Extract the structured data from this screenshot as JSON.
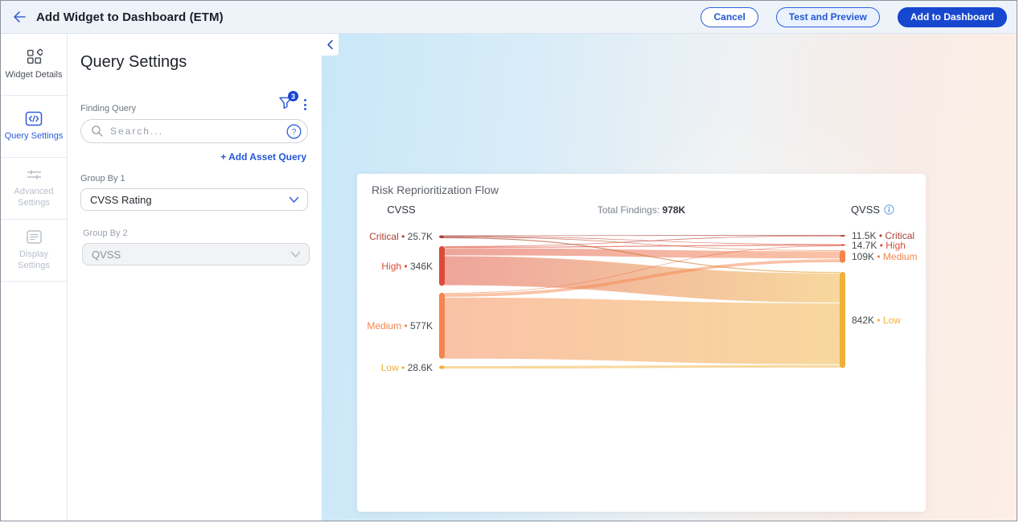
{
  "header": {
    "title": "Add Widget to Dashboard (ETM)",
    "buttons": {
      "cancel": "Cancel",
      "test_preview": "Test and Preview",
      "add": "Add to Dashboard"
    }
  },
  "colors": {
    "accent_blue": "#2457d6",
    "primary_button_bg": "#1747cf"
  },
  "sidebar": {
    "items": [
      {
        "label": "Widget Details",
        "icon": "widget-grid-icon",
        "state": "default"
      },
      {
        "label": "Query Settings",
        "icon": "code-icon",
        "state": "active"
      },
      {
        "label": "Advanced Settings",
        "icon": "sliders-icon",
        "state": "disabled"
      },
      {
        "label": "Display Settings",
        "icon": "display-list-icon",
        "state": "disabled"
      }
    ]
  },
  "query_settings": {
    "title": "Query Settings",
    "finding_query_label": "Finding Query",
    "filter_badge_count": "3",
    "search_placeholder": "Search...",
    "add_asset_query_label": "+ Add Asset Query",
    "group_by_1": {
      "label": "Group By 1",
      "value": "CVSS Rating",
      "disabled": false
    },
    "group_by_2": {
      "label": "Group By 2",
      "value": "QVSS",
      "disabled": true
    }
  },
  "chart_data": {
    "type": "sankey",
    "title": "Risk Reprioritization Flow",
    "left_column_label": "CVSS",
    "right_column_label": "QVSS",
    "total_findings_label": "Total Findings:",
    "total_findings_value": "978K",
    "severity_colors": {
      "Critical": "#ab4238",
      "High": "#dd4b37",
      "Medium": "#f5854e",
      "Low": "#f0b03c"
    },
    "left_nodes": [
      {
        "name": "Critical",
        "value": 25.7,
        "value_label": "25.7K"
      },
      {
        "name": "High",
        "value": 346,
        "value_label": "346K"
      },
      {
        "name": "Medium",
        "value": 577,
        "value_label": "577K"
      },
      {
        "name": "Low",
        "value": 28.6,
        "value_label": "28.6K"
      }
    ],
    "right_nodes": [
      {
        "name": "Critical",
        "value": 11.5,
        "value_label": "11.5K"
      },
      {
        "name": "High",
        "value": 14.7,
        "value_label": "14.7K"
      },
      {
        "name": "Medium",
        "value": 109,
        "value_label": "109K"
      },
      {
        "name": "Low",
        "value": 842,
        "value_label": "842K"
      }
    ],
    "links": [
      {
        "source": "Critical",
        "target": "Critical",
        "value": 6
      },
      {
        "source": "Critical",
        "target": "High",
        "value": 5
      },
      {
        "source": "Critical",
        "target": "Medium",
        "value": 6
      },
      {
        "source": "Critical",
        "target": "Low",
        "value": 8.7
      },
      {
        "source": "High",
        "target": "Critical",
        "value": 5.5
      },
      {
        "source": "High",
        "target": "High",
        "value": 8
      },
      {
        "source": "High",
        "target": "Medium",
        "value": 70
      },
      {
        "source": "High",
        "target": "Low",
        "value": 262.5
      },
      {
        "source": "Medium",
        "target": "High",
        "value": 1.7
      },
      {
        "source": "Medium",
        "target": "Medium",
        "value": 33
      },
      {
        "source": "Medium",
        "target": "Low",
        "value": 542.3
      },
      {
        "source": "Low",
        "target": "Low",
        "value": 28.6
      }
    ]
  }
}
